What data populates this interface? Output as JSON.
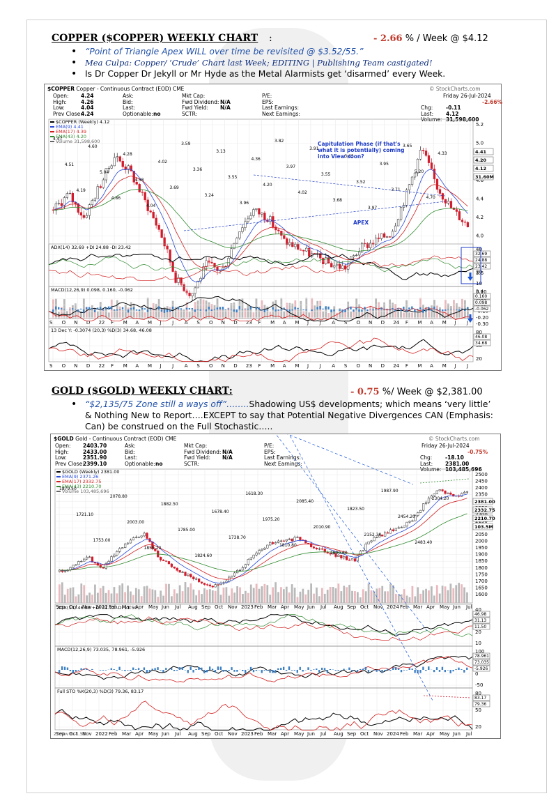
{
  "copper": {
    "title": "COPPER ($COPPER) WEEKLY CHART",
    "colon": ":",
    "change_pct": "- 2.66",
    "change_suffix": " % / Week @ $4.12",
    "bullet1": "“Point of Triangle Apex WILL over time be revisited @ $3.52/55.”",
    "bullet2": "Mea Culpa: Copper/ ‘Crude’ Chart last Week; EDITING | Publishing Team castigated!",
    "bullet3": "Is Dr Copper Dr Jekyll or Mr Hyde as the Metal Alarmists get ‘disarmed’ every Week.",
    "chart": {
      "symbol": "$COPPER",
      "name": "Copper - Continuous Contract (EOD)",
      "exchange": "CME",
      "watermark": "© StockCharts.com",
      "date": "Friday  26-Jul-2024",
      "pct": "-2.66%",
      "stats_left": [
        [
          "Open:",
          "4.24"
        ],
        [
          "High:",
          "4.26"
        ],
        [
          "Low:",
          "4.04"
        ],
        [
          "Prev Close:",
          "4.24"
        ]
      ],
      "stats_left2": [
        [
          "Ask:",
          ""
        ],
        [
          "Bid:",
          ""
        ],
        [
          "Last:",
          ""
        ],
        [
          "Optionable:",
          "no"
        ]
      ],
      "stats_mid": [
        [
          "Mkt Cap:",
          ""
        ],
        [
          "Fwd Dividend:",
          "N/A"
        ],
        [
          "Fwd Yield:",
          "N/A"
        ],
        [
          "SCTR:",
          ""
        ]
      ],
      "stats_mid2": [
        [
          "P/E:",
          ""
        ],
        [
          "EPS:",
          ""
        ],
        [
          "Last Earnings:",
          ""
        ],
        [
          "Next Earnings:",
          ""
        ]
      ],
      "stats_right": [
        [
          "Chg:",
          "-0.11"
        ],
        [
          "Last:",
          "4.12"
        ],
        [
          "Volume:",
          "31,598,600"
        ]
      ],
      "legend": [
        "$COPPER (Weekly) 4.12",
        "EMA(9) 4.41",
        "EMA(17) 4.39",
        "EMA(43) 4.20",
        "Volume 31,598,600"
      ],
      "price_labels": [
        "4.47",
        "4.51",
        "4.19",
        "4.60",
        "5.04",
        "4.86",
        "4.28",
        "4.58",
        "4.04",
        "4.02",
        "3.69",
        "3.59",
        "3.36",
        "3.24",
        "3.13",
        "3.55",
        "3.96",
        "4.36",
        "4.20",
        "3.82",
        "3.97",
        "4.02",
        "3.91",
        "3.55",
        "3.68",
        "3.63",
        "3.52",
        "3.97",
        "3.95",
        "3.71",
        "3.65",
        "5.20",
        "4.70",
        "4.33"
      ],
      "annotation": "Capitulation Phase (if that's what it is potentially) coming into View soon?",
      "apex": "APEX",
      "y_ticks": [
        "5.2",
        "5.0",
        "4.8",
        "4.6",
        "4.4",
        "4.2",
        "4.0",
        "3.8",
        "3.6",
        "3.4",
        "3.2"
      ],
      "right_tags": [
        "4.41",
        "4.20",
        "4.12",
        "31.60M"
      ],
      "months": [
        "S",
        "O",
        "N",
        "D",
        "22",
        "F",
        "M",
        "A",
        "M",
        "J",
        "J",
        "A",
        "S",
        "O",
        "N",
        "D",
        "23",
        "F",
        "M",
        "A",
        "M",
        "J",
        "J",
        "A",
        "S",
        "O",
        "N",
        "D",
        "24",
        "F",
        "M",
        "A",
        "M",
        "J",
        "J"
      ],
      "adx_label": "ADX(14) 32.69  +DI 24.88  -DI 23.42",
      "adx_ticks": [
        "40",
        "30",
        "20",
        "10"
      ],
      "adx_tags": [
        "32.69",
        "24.88",
        "23.42"
      ],
      "macd_label": "MACD(12,26,9) 0.098, 0.160, -0.062",
      "macd_ticks": [
        "0.20",
        "0.10",
        "0.00",
        "-0.10",
        "-0.20",
        "-0.30"
      ],
      "macd_tags": [
        "0.160",
        "0.098",
        "-0.062"
      ],
      "sto_label": "13 Dec Y: -0.3074 (20,3) %D(3) 34.68, 46.08",
      "sto_ticks": [
        "80",
        "50",
        "20"
      ],
      "sto_tags": [
        "46.08",
        "34.68"
      ]
    }
  },
  "gold": {
    "title": "GOLD ($GOLD) WEEKLY CHART:",
    "change_pct": "- 0.75",
    "change_suffix": " %/ Week @ $2,381.00",
    "bullet_quote": "“$2,135/75 Zone still a ways off”……..",
    "bullet_rest": "Shadowing US$ developments; which means ‘very little’ & Nothing New to Report….EXCEPT to say that Potential Negative Divergences CAN (Emphasis: Can) be construed on the Full Stochastic…..",
    "chart": {
      "symbol": "$GOLD",
      "name": "Gold - Continuous Contract (EOD)",
      "exchange": "CME",
      "watermark": "© StockCharts.com",
      "date": "Friday  26-Jul-2024",
      "pct": "-0.75%",
      "stats_left": [
        [
          "Open:",
          "2403.70"
        ],
        [
          "High:",
          "2433.00"
        ],
        [
          "Low:",
          "2351.90"
        ],
        [
          "Prev Close:",
          "2399.10"
        ]
      ],
      "stats_left2": [
        [
          "Ask:",
          ""
        ],
        [
          "Bid:",
          ""
        ],
        [
          "Last:",
          ""
        ],
        [
          "Optionable:",
          "no"
        ]
      ],
      "stats_mid": [
        [
          "Mkt Cap:",
          ""
        ],
        [
          "Fwd Dividend:",
          "N/A"
        ],
        [
          "Fwd Yield:",
          "N/A"
        ],
        [
          "SCTR:",
          ""
        ]
      ],
      "stats_mid2": [
        [
          "P/E:",
          ""
        ],
        [
          "EPS:",
          ""
        ],
        [
          "Last Earnings:",
          ""
        ],
        [
          "Next Earnings:",
          ""
        ]
      ],
      "stats_right": [
        [
          "Chg:",
          "-18.10"
        ],
        [
          "Last:",
          "2381.00"
        ],
        [
          "Volume:",
          "103,485,696"
        ]
      ],
      "legend": [
        "$GOLD (Weekly) 2381.00",
        "EMA(9) 2371.26",
        "EMA(17) 2332.75",
        "EMA(43) 2210.70",
        "Volume 103,485,696"
      ],
      "price_labels": [
        "1879.50",
        "1721.10",
        "1753.00",
        "2078.80",
        "2003.00",
        "1859.20",
        "1882.50",
        "1785.00",
        "1824.60",
        "1678.40",
        "1738.70",
        "1618.30",
        "1975.20",
        "1810.80",
        "2085.40",
        "2010.90",
        "1900.60",
        "1823.50",
        "2152.30",
        "1987.90",
        "2454.20",
        "2483.40",
        "2304.20"
      ],
      "y_ticks": [
        "2500",
        "2450",
        "2400",
        "2350",
        "2300",
        "2250",
        "2200",
        "2150",
        "2100",
        "2050",
        "2000",
        "1950",
        "1900",
        "1850",
        "1800",
        "1750",
        "1700",
        "1650",
        "1600"
      ],
      "right_tags": [
        "2381.00",
        "2332.75",
        "2210.70",
        "103.5M"
      ],
      "months": [
        "Sep",
        "Oct",
        "Nov",
        "2022",
        "Feb",
        "Mar",
        "Apr",
        "May",
        "Jun",
        "Jul",
        "Aug",
        "Sep",
        "Oct",
        "Nov",
        "2023",
        "Feb",
        "Mar",
        "Apr",
        "May",
        "Jun",
        "Jul",
        "Aug",
        "Sep",
        "Oct",
        "Nov",
        "2024",
        "Feb",
        "Mar",
        "Apr",
        "May",
        "Jun",
        "Jul"
      ],
      "adx_label": "ADX(14) 46.98  +DI 31.13  -DI 11.50",
      "adx_ticks": [
        "40",
        "30",
        "20",
        "10"
      ],
      "adx_tags": [
        "46.98",
        "31.13",
        "11.50"
      ],
      "macd_label": "MACD(12,26,9) 73.035, 78.961, -5.926",
      "macd_ticks": [
        "100",
        "50",
        "0",
        "-50"
      ],
      "macd_tags": [
        "78.961",
        "73.035",
        "-5.926"
      ],
      "sto_label": "Full STO %K(20,3) %D(3) 79.36, 83.17",
      "sto_ticks": [
        "80",
        "50",
        "20"
      ],
      "sto_tags": [
        "83.17",
        "79.36"
      ],
      "bottom_left": "27 Nov Y: -1.58"
    }
  },
  "colors": {
    "up": "#2b2b2b",
    "down": "#d01c2c",
    "ema9": "#2747d8",
    "ema17": "#d11d1d",
    "ema43": "#2f8a2f",
    "adx": "#000000",
    "plus_di": "#2f8a2f",
    "minus_di": "#d11d1d",
    "volume": "#b9b9b9",
    "annotation": "#1f3cc4",
    "arrow_blue": "#1c56d8"
  }
}
